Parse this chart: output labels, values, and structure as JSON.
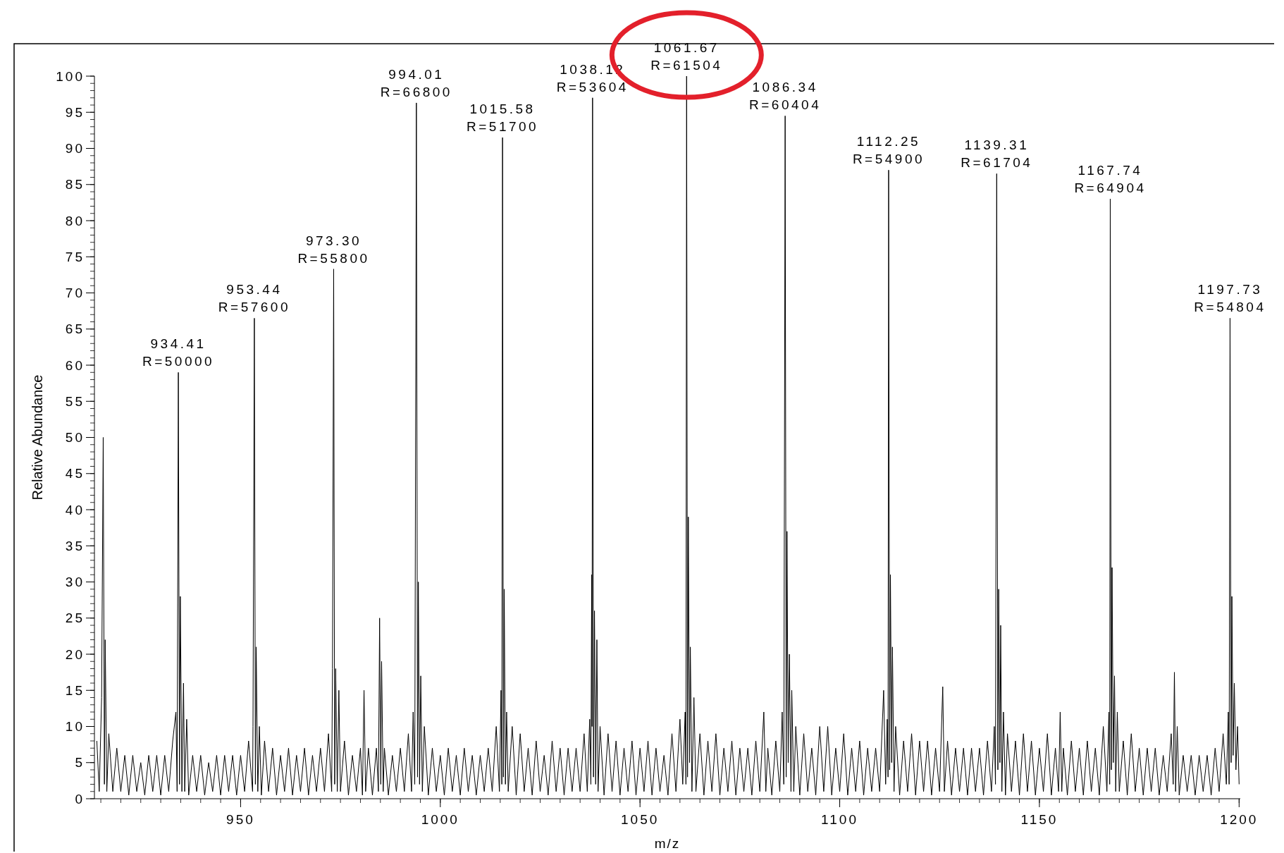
{
  "chart_data": {
    "type": "line",
    "xlabel": "m/z",
    "ylabel": "Relative Abundance",
    "xlim": [
      913.4,
      1200.3
    ],
    "ylim": [
      0,
      100
    ],
    "xticks": [
      950,
      1000,
      1050,
      1100,
      1150,
      1200
    ],
    "yticks": [
      0,
      5,
      10,
      15,
      20,
      25,
      30,
      35,
      40,
      45,
      50,
      55,
      60,
      65,
      70,
      75,
      80,
      85,
      90,
      95,
      100
    ],
    "grid": false,
    "marker": "none",
    "line_style": "solid",
    "series": [
      {
        "color": "#000000",
        "x": [
          914,
          914.6,
          915.2,
          915.6,
          915.9,
          916.1,
          916.5,
          917,
          918,
          919,
          920,
          921,
          922,
          923,
          924,
          925,
          926,
          927,
          928,
          929,
          930,
          931,
          932,
          933,
          933.8,
          934.1,
          934.41,
          934.7,
          934.9,
          935.3,
          935.7,
          936,
          936.5,
          937,
          938,
          939,
          940,
          941,
          942,
          943,
          944,
          945,
          946,
          947,
          948,
          949,
          950,
          951,
          952,
          953,
          953.1,
          953.44,
          953.7,
          953.9,
          954.3,
          954.7,
          955.2,
          956,
          957,
          958,
          959,
          960,
          961,
          962,
          963,
          964,
          965,
          966,
          967,
          968,
          969,
          970,
          971,
          972,
          972.8,
          973,
          973.3,
          973.55,
          973.8,
          974.2,
          974.6,
          975,
          976,
          977,
          978,
          979,
          980,
          980.5,
          980.9,
          981.3,
          982,
          983,
          984,
          984.5,
          984.8,
          985.1,
          985.3,
          985.7,
          986,
          987,
          988,
          989,
          990,
          991,
          992,
          992.8,
          993.2,
          993.6,
          994.01,
          994.3,
          994.5,
          994.8,
          995.1,
          995.5,
          996,
          997,
          998,
          999,
          1000,
          1001,
          1002,
          1003,
          1004,
          1005,
          1006,
          1007,
          1008,
          1009,
          1010,
          1011,
          1012,
          1013,
          1014,
          1014.8,
          1015.2,
          1015.4,
          1015.58,
          1015.8,
          1016,
          1016.3,
          1016.6,
          1017,
          1018,
          1019,
          1020,
          1021,
          1022,
          1023,
          1024,
          1025,
          1026,
          1027,
          1028,
          1029,
          1030,
          1031,
          1032,
          1033,
          1034,
          1035,
          1036,
          1036.8,
          1037.4,
          1037.7,
          1037.9,
          1038,
          1038.12,
          1038.35,
          1038.6,
          1038.9,
          1039.2,
          1039.5,
          1040,
          1041,
          1042,
          1043,
          1044,
          1045,
          1046,
          1047,
          1048,
          1049,
          1050,
          1051,
          1052,
          1053,
          1054,
          1055,
          1056,
          1057,
          1058,
          1059,
          1060,
          1060.7,
          1061.3,
          1061.5,
          1061.67,
          1061.9,
          1062.1,
          1062.4,
          1062.6,
          1063,
          1063.5,
          1064,
          1065,
          1066,
          1067,
          1068,
          1069,
          1070,
          1071,
          1072,
          1073,
          1074,
          1075,
          1076,
          1077,
          1078,
          1079,
          1080,
          1081,
          1081.5,
          1082,
          1083,
          1084,
          1085,
          1085.6,
          1086,
          1086.34,
          1086.6,
          1086.8,
          1087.1,
          1087.4,
          1087.8,
          1088,
          1088.5,
          1089,
          1090,
          1091,
          1092,
          1093,
          1094,
          1095,
          1096,
          1097,
          1098,
          1099,
          1100,
          1101,
          1102,
          1103,
          1104,
          1105,
          1106,
          1107,
          1108,
          1109,
          1110,
          1111,
          1111.5,
          1111.9,
          1112.1,
          1112.25,
          1112.5,
          1112.7,
          1113,
          1113.2,
          1113.6,
          1114,
          1115,
          1116,
          1117,
          1118,
          1119,
          1120,
          1121,
          1122,
          1123,
          1124,
          1125,
          1125.8,
          1126.2,
          1127,
          1128,
          1129,
          1130,
          1131,
          1132,
          1133,
          1134,
          1135,
          1136,
          1137,
          1138,
          1138.7,
          1139,
          1139.31,
          1139.6,
          1139.8,
          1140.1,
          1140.3,
          1140.6,
          1141,
          1141.5,
          1142,
          1143,
          1144,
          1145,
          1146,
          1147,
          1148,
          1149,
          1150,
          1151,
          1152,
          1153,
          1154,
          1154.8,
          1155.2,
          1155.6,
          1156,
          1157,
          1158,
          1159,
          1160,
          1161,
          1162,
          1163,
          1164,
          1165,
          1166,
          1166.9,
          1167.4,
          1167.6,
          1167.74,
          1168,
          1168.2,
          1168.5,
          1168.8,
          1169.1,
          1169.5,
          1170,
          1171,
          1172,
          1173,
          1174,
          1175,
          1176,
          1177,
          1178,
          1179,
          1180,
          1181,
          1182,
          1183,
          1183.5,
          1183.8,
          1184.1,
          1184.5,
          1185,
          1186,
          1187,
          1188,
          1189,
          1190,
          1191,
          1192,
          1193,
          1194,
          1195,
          1196,
          1196.8,
          1197.3,
          1197.5,
          1197.73,
          1198,
          1198.2,
          1198.5,
          1198.8,
          1199.2,
          1199.6,
          1200
        ],
        "values": [
          8,
          1,
          14,
          50,
          2,
          22,
          1,
          9,
          1,
          7,
          1,
          6,
          0.5,
          6,
          1,
          5,
          0.5,
          6,
          1,
          6,
          0.5,
          6,
          1,
          8,
          12,
          1,
          59,
          2,
          28,
          1,
          16,
          1,
          11,
          0.5,
          6,
          1,
          6,
          0.5,
          5,
          1,
          6,
          0.5,
          6,
          1,
          6,
          0.5,
          6,
          1,
          8,
          1,
          10,
          66.5,
          2,
          21,
          1,
          10,
          0.5,
          8,
          1,
          7,
          0.5,
          6,
          1,
          7,
          0.5,
          6,
          1,
          7,
          0.5,
          6,
          1,
          7,
          1,
          9,
          1,
          18,
          73.3,
          2,
          18,
          1,
          15,
          1,
          8,
          0.5,
          6,
          1,
          7,
          0.5,
          15,
          1,
          7,
          0.5,
          7,
          1,
          25,
          2,
          19,
          1,
          7,
          0.5,
          6,
          1,
          7,
          1,
          9,
          1,
          12,
          2,
          96.3,
          3,
          30,
          2,
          17,
          1,
          10,
          0.5,
          7,
          1,
          6,
          0.5,
          7,
          1,
          6,
          0.5,
          7,
          1,
          6,
          0.5,
          6,
          1,
          7,
          1,
          10,
          1,
          15,
          2,
          91.5,
          3,
          29,
          2,
          12,
          1,
          10,
          0.5,
          9,
          1,
          7,
          0.5,
          8,
          1,
          6,
          0.5,
          8,
          1,
          7,
          0.5,
          7,
          1,
          7,
          1,
          9,
          1,
          11,
          2,
          31,
          10,
          97,
          3,
          26,
          2,
          22,
          1,
          10,
          0.5,
          9,
          1,
          8,
          0.5,
          7,
          1,
          8,
          0.5,
          7,
          1,
          8,
          0.5,
          7,
          1,
          6,
          0.5,
          9,
          1,
          11,
          2,
          12,
          2,
          100,
          3,
          39,
          5,
          21,
          1,
          14,
          1,
          9,
          0.5,
          8,
          1,
          9,
          0.5,
          7,
          1,
          8,
          0.5,
          7,
          1,
          7,
          0.5,
          8,
          1,
          12,
          1,
          7,
          0.5,
          8,
          1,
          12,
          2,
          94.5,
          3,
          37,
          5,
          20,
          1,
          15,
          1,
          10,
          0.5,
          9,
          1,
          7,
          0.5,
          10,
          1,
          10,
          0.5,
          7,
          1,
          9,
          0.5,
          7,
          1,
          8,
          0.5,
          7,
          1,
          7,
          1,
          15,
          2,
          11,
          3,
          87,
          4,
          31,
          5,
          21,
          1,
          10,
          0.5,
          8,
          1,
          9,
          0.5,
          8,
          1,
          8,
          0.5,
          7,
          1,
          15.5,
          1,
          8,
          0.5,
          7,
          1,
          7,
          0.5,
          7,
          1,
          7,
          0.5,
          8,
          1,
          10,
          2,
          86.5,
          4,
          29,
          5,
          24,
          1,
          12,
          0.5,
          9,
          1,
          8,
          0.5,
          9,
          1,
          8,
          0.5,
          7,
          1,
          9,
          0.5,
          7,
          1,
          12,
          1,
          7,
          0.5,
          8,
          1,
          7,
          0.5,
          8,
          1,
          7,
          0.5,
          10,
          1,
          12,
          2,
          83,
          4,
          32,
          5,
          17,
          1,
          12,
          1,
          8,
          0.5,
          9,
          1,
          7,
          0.5,
          7,
          1,
          7,
          0.5,
          6,
          1,
          9,
          2,
          17.5,
          1,
          10,
          0.5,
          6,
          1,
          6,
          0.5,
          6,
          1,
          6,
          0.5,
          7,
          1,
          9,
          2,
          12,
          2,
          66.5,
          5,
          28,
          6,
          16,
          4,
          10,
          2
        ]
      }
    ],
    "annotations": [
      {
        "text": "934.41\nR=50000",
        "x": 934.41,
        "y": 59
      },
      {
        "text": "953.44\nR=57600",
        "x": 953.44,
        "y": 66.5
      },
      {
        "text": "973.30\nR=55800",
        "x": 973.3,
        "y": 73.3
      },
      {
        "text": "994.01\nR=66800",
        "x": 994.01,
        "y": 96.3
      },
      {
        "text": "1015.58\nR=51700",
        "x": 1015.58,
        "y": 91.5
      },
      {
        "text": "1038.12\nR=53604",
        "x": 1038.12,
        "y": 97
      },
      {
        "text": "1061.67\nR=61504",
        "x": 1061.67,
        "y": 100
      },
      {
        "text": "1086.34\nR=60404",
        "x": 1086.34,
        "y": 94.5
      },
      {
        "text": "1112.25\nR=54900",
        "x": 1112.25,
        "y": 87
      },
      {
        "text": "1139.31\nR=61704",
        "x": 1139.31,
        "y": 86.5
      },
      {
        "text": "1167.74\nR=64904",
        "x": 1167.74,
        "y": 83
      },
      {
        "text": "1197.73\nR=54804",
        "x": 1197.73,
        "y": 66.5
      }
    ]
  }
}
